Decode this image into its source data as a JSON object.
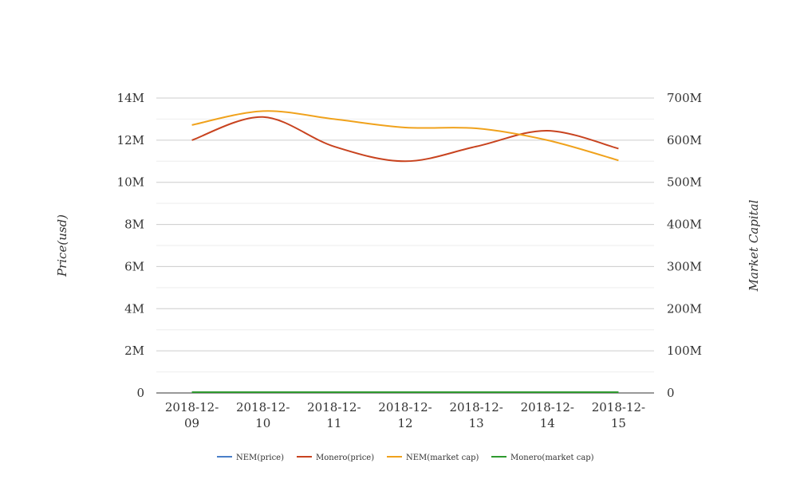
{
  "chart_data": {
    "type": "line",
    "title": "",
    "ylabel": "Price(usd)",
    "y2label": "Market Capital",
    "categories": [
      "2018-12-09",
      "2018-12-10",
      "2018-12-11",
      "2018-12-12",
      "2018-12-13",
      "2018-12-14",
      "2018-12-15"
    ],
    "x_tick_lines": [
      [
        "2018-12-",
        "09"
      ],
      [
        "2018-12-",
        "10"
      ],
      [
        "2018-12-",
        "11"
      ],
      [
        "2018-12-",
        "12"
      ],
      [
        "2018-12-",
        "13"
      ],
      [
        "2018-12-",
        "14"
      ],
      [
        "2018-12-",
        "15"
      ]
    ],
    "ylim": [
      0,
      14000000
    ],
    "y2lim": [
      0,
      700000000
    ],
    "y_ticks": [
      "0",
      "2M",
      "4M",
      "6M",
      "8M",
      "10M",
      "12M",
      "14M"
    ],
    "y2_ticks": [
      "0",
      "100M",
      "200M",
      "300M",
      "400M",
      "500M",
      "600M",
      "700M"
    ],
    "grid": true,
    "legend_position": "bottom",
    "series": [
      {
        "name": "NEM(price)",
        "axis": "left",
        "color": "#4a7fc8",
        "values": [
          0.08,
          0.09,
          0.08,
          0.07,
          0.07,
          0.07,
          0.06
        ]
      },
      {
        "name": "Monero(price)",
        "axis": "left",
        "color": "#c8431f",
        "values": [
          12000000,
          13100000,
          11700000,
          11000000,
          11700000,
          12450000,
          11600000
        ]
      },
      {
        "name": "NEM(market cap)",
        "axis": "right",
        "color": "#f0a21c",
        "values": [
          636000000,
          669000000,
          650000000,
          630000000,
          628000000,
          600000000,
          552000000
        ]
      },
      {
        "name": "Monero(market cap)",
        "axis": "right",
        "color": "#2e9a2e",
        "values": [
          200000,
          210000,
          200000,
          190000,
          190000,
          200000,
          190000
        ]
      }
    ]
  }
}
